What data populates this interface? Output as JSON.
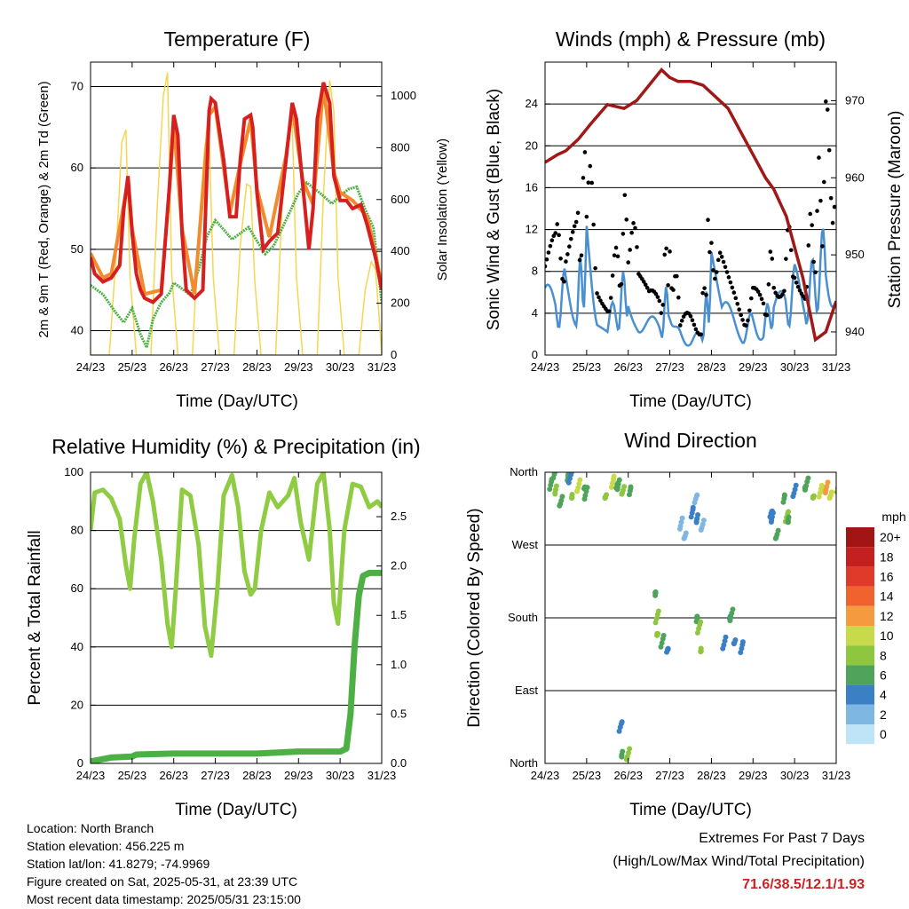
{
  "panels": [
    {
      "title": "Temperature (F)",
      "xlabel": "Time (Day/UTC)",
      "ylabel_left": "2m & 9m T (Red, Orange) & 2m Td (Green)",
      "ylabel_right": "Solar Insolation (Yellow)"
    },
    {
      "title": "Winds (mph) & Pressure (mb)",
      "xlabel": "Time (Day/UTC)",
      "ylabel_left": "Sonic Wind & Gust (Blue, Black)",
      "ylabel_right": "Station Pressure (Maroon)"
    },
    {
      "title": "Relative Humidity (%) & Precipitation (in)",
      "xlabel": "Time (Day/UTC)",
      "ylabel_left": "Percent & Total Rainfall",
      "ylabel_right": ""
    },
    {
      "title": "Wind Direction",
      "xlabel": "Time (Day/UTC)",
      "ylabel_left": "Direction (Colored By Speed)",
      "ylabel_right": ""
    }
  ],
  "colorbar": {
    "unit": "mph",
    "labels": [
      "20+",
      "18",
      "16",
      "14",
      "12",
      "10",
      "8",
      "6",
      "4",
      "2",
      "0"
    ],
    "colors": [
      "#a31515",
      "#c42020",
      "#e03a2a",
      "#f0622e",
      "#f59a3e",
      "#c8d94a",
      "#8fc640",
      "#4fa35b",
      "#3b7fc4",
      "#7fb7e3",
      "#bfe3f7"
    ]
  },
  "info": {
    "location": "Location: North Branch",
    "elevation": "Station elevation: 456.225 m",
    "latlon": "Station lat/lon: 41.8279; -74.9969",
    "created": "Figure created on Sat, 2025-05-31, at 23:39 UTC",
    "recent": "Most recent data timestamp: 2025/05/31 23:15:00"
  },
  "extremes": {
    "line1": "Extremes For Past 7 Days",
    "line2": "(High/Low/Max Wind/Total Precipitation)",
    "values": "71.6/38.5/12.1/1.93"
  },
  "chart_data": [
    {
      "type": "line",
      "title": "Temperature (F)",
      "xlabel": "Time (Day/UTC)",
      "x_ticks": [
        "24/23",
        "25/23",
        "26/23",
        "27/23",
        "28/23",
        "29/23",
        "30/23",
        "31/23"
      ],
      "xlim": [
        0,
        7
      ],
      "ylabel": "2m & 9m T (Red, Orange) & 2m Td (Green)",
      "ylim": [
        37,
        73
      ],
      "y_ticks": [
        40,
        50,
        60,
        70
      ],
      "y2label": "Solar Insolation (Yellow)",
      "y2lim": [
        0,
        1130
      ],
      "y2_ticks": [
        0,
        200,
        400,
        600,
        800,
        1000
      ],
      "series": [
        {
          "name": "2m T",
          "color": "#d62020",
          "x": [
            0,
            0.1,
            0.3,
            0.5,
            0.7,
            0.8,
            0.9,
            1.0,
            1.1,
            1.2,
            1.3,
            1.5,
            1.7,
            1.9,
            2.0,
            2.1,
            2.2,
            2.3,
            2.5,
            2.7,
            2.85,
            2.9,
            3.0,
            3.2,
            3.35,
            3.5,
            3.6,
            3.7,
            3.85,
            3.9,
            4.0,
            4.15,
            4.3,
            4.5,
            4.7,
            4.85,
            4.95,
            5.1,
            5.25,
            5.35,
            5.45,
            5.6,
            5.75,
            5.85,
            6.0,
            6.15,
            6.3,
            6.5,
            6.65,
            6.85,
            7.0
          ],
          "y": [
            49,
            47,
            46,
            46.5,
            48,
            55,
            59,
            52,
            47,
            45,
            44,
            43.5,
            44.5,
            58,
            66.5,
            64,
            52,
            45,
            44,
            45,
            67,
            68.5,
            68,
            61,
            54,
            54,
            61,
            66,
            66.5,
            65,
            57,
            50,
            51,
            52,
            61,
            68,
            66,
            58,
            50,
            55,
            66,
            70.5,
            68,
            59,
            56,
            56,
            55,
            55.5,
            53,
            49,
            45
          ]
        },
        {
          "name": "9m T",
          "color": "#f28a2e",
          "x": [
            0,
            0.3,
            0.5,
            0.8,
            0.9,
            1.0,
            1.3,
            1.7,
            1.9,
            2.0,
            2.2,
            2.5,
            2.85,
            3.0,
            3.35,
            3.6,
            3.85,
            4.0,
            4.3,
            4.7,
            4.85,
            5.1,
            5.35,
            5.6,
            5.85,
            6.0,
            6.3,
            6.65,
            6.85,
            7.0
          ],
          "y": [
            49.5,
            46.5,
            47,
            55.5,
            58.5,
            52.5,
            44.5,
            45,
            57.5,
            65.5,
            52.5,
            44.5,
            66.5,
            67.5,
            54.5,
            60.5,
            66,
            57.5,
            51.5,
            61.5,
            67.5,
            58.5,
            55.5,
            70,
            59.5,
            57,
            56,
            54,
            49.5,
            45.5
          ]
        },
        {
          "name": "2m Td",
          "color": "#4db044",
          "x": [
            0,
            0.3,
            0.6,
            0.8,
            1.0,
            1.2,
            1.35,
            1.5,
            1.7,
            1.9,
            2.0,
            2.2,
            2.4,
            2.6,
            2.8,
            3.0,
            3.2,
            3.4,
            3.6,
            3.8,
            4.0,
            4.2,
            4.4,
            4.6,
            4.8,
            5.0,
            5.2,
            5.4,
            5.6,
            5.8,
            6.0,
            6.2,
            6.4,
            6.6,
            6.8,
            7.0
          ],
          "y": [
            45,
            44,
            42,
            41,
            43,
            40,
            38.5,
            42,
            44,
            45,
            46,
            45,
            44,
            47,
            51,
            53,
            52,
            51,
            52,
            53,
            51.5,
            50,
            51,
            53,
            55,
            57,
            58,
            57,
            56,
            55,
            56,
            57,
            57.5,
            55,
            53,
            44
          ]
        },
        {
          "name": "Solar Insolation",
          "color": "#f5d650",
          "x": [
            0,
            0.45,
            0.6,
            0.75,
            0.85,
            0.95,
            1.1,
            1.45,
            1.6,
            1.75,
            1.85,
            1.95,
            2.1,
            2.45,
            2.6,
            2.75,
            2.85,
            2.95,
            3.1,
            3.45,
            3.6,
            3.75,
            3.85,
            3.95,
            4.1,
            4.45,
            4.6,
            4.75,
            4.85,
            4.95,
            5.1,
            5.45,
            5.6,
            5.75,
            5.85,
            5.95,
            6.1,
            6.45,
            6.6,
            6.75,
            6.85,
            6.95,
            7.0
          ],
          "y": [
            0,
            0,
            350,
            820,
            870,
            300,
            0,
            0,
            560,
            1000,
            1090,
            320,
            0,
            0,
            480,
            810,
            860,
            300,
            0,
            0,
            420,
            660,
            650,
            280,
            0,
            0,
            560,
            870,
            890,
            300,
            0,
            0,
            620,
            1060,
            940,
            300,
            0,
            0,
            250,
            360,
            330,
            120,
            0
          ]
        }
      ]
    },
    {
      "type": "line",
      "title": "Winds (mph) & Pressure (mb)",
      "xlabel": "Time (Day/UTC)",
      "x_ticks": [
        "24/23",
        "25/23",
        "26/23",
        "27/23",
        "28/23",
        "29/23",
        "30/23",
        "31/23"
      ],
      "xlim": [
        0,
        7
      ],
      "ylabel": "Sonic Wind & Gust (Blue, Black)",
      "ylim": [
        0,
        28
      ],
      "y_ticks": [
        0,
        4,
        8,
        12,
        16,
        20,
        24
      ],
      "y2label": "Station Pressure (Maroon)",
      "y2lim": [
        937,
        975
      ],
      "y2_ticks": [
        940,
        950,
        960,
        970
      ],
      "series": [
        {
          "name": "Sonic Wind",
          "color": "#4a90d0",
          "x": [
            0,
            0.25,
            0.5,
            0.75,
            1.0,
            1.25,
            1.5,
            1.75,
            2.0,
            2.25,
            2.5,
            2.75,
            3.0,
            3.25,
            3.5,
            3.75,
            4.0,
            4.25,
            4.5,
            4.75,
            5.0,
            5.25,
            5.5,
            5.75,
            6.0,
            6.25,
            6.5,
            6.75,
            7.0
          ],
          "y": [
            5,
            4,
            6,
            5,
            9,
            5,
            3,
            4,
            7,
            4,
            3,
            2,
            6,
            2,
            1.5,
            1.5,
            7,
            4,
            3,
            2,
            3,
            2.5,
            5,
            4,
            6,
            5,
            7,
            9,
            8
          ]
        },
        {
          "name": "Gust",
          "color": "#000000",
          "x": [
            0,
            0.25,
            0.5,
            0.75,
            1.0,
            1.25,
            1.5,
            1.75,
            2.0,
            2.25,
            2.5,
            2.75,
            3.0,
            3.25,
            3.5,
            3.75,
            4.0,
            4.25,
            4.5,
            4.75,
            5.0,
            5.25,
            5.5,
            5.75,
            6.0,
            6.25,
            6.5,
            6.75,
            7.0
          ],
          "y": [
            10,
            9,
            11,
            10,
            16,
            9,
            6,
            8,
            13,
            7,
            5,
            4,
            11,
            3,
            3,
            3,
            13,
            7,
            5,
            4,
            5,
            4,
            9,
            8,
            11,
            8,
            12,
            18,
            20
          ]
        },
        {
          "name": "Station Pressure",
          "color": "#a01818",
          "x": [
            0,
            0.3,
            0.5,
            0.8,
            1.1,
            1.5,
            1.9,
            2.2,
            2.5,
            2.8,
            3.0,
            3.2,
            3.5,
            3.8,
            4.1,
            4.4,
            4.7,
            5.0,
            5.3,
            5.5,
            5.8,
            6.0,
            6.2,
            6.35,
            6.5,
            6.75,
            7.0
          ],
          "y": [
            962,
            963,
            963.5,
            965,
            967,
            969.5,
            969,
            970,
            972,
            974,
            973,
            972.5,
            972.5,
            972,
            970.5,
            969,
            966,
            963,
            960,
            958.5,
            955,
            951,
            947,
            943,
            939,
            940,
            944
          ]
        }
      ]
    },
    {
      "type": "line",
      "title": "Relative Humidity (%) & Precipitation (in)",
      "xlabel": "Time (Day/UTC)",
      "x_ticks": [
        "24/23",
        "25/23",
        "26/23",
        "27/23",
        "28/23",
        "29/23",
        "30/23",
        "31/23"
      ],
      "xlim": [
        0,
        7
      ],
      "ylabel": "Percent & Total Rainfall",
      "ylim": [
        0,
        100
      ],
      "y_ticks": [
        0,
        20,
        40,
        60,
        80,
        100
      ],
      "y2lim": [
        0,
        2.95
      ],
      "y2_ticks": [
        0.0,
        0.5,
        1.0,
        1.5,
        2.0,
        2.5
      ],
      "series": [
        {
          "name": "Relative Humidity",
          "color": "#8fcc44",
          "x": [
            0,
            0.1,
            0.3,
            0.5,
            0.7,
            0.85,
            0.95,
            1.05,
            1.2,
            1.35,
            1.5,
            1.7,
            1.85,
            1.95,
            2.05,
            2.2,
            2.4,
            2.6,
            2.75,
            2.9,
            3.05,
            3.2,
            3.4,
            3.55,
            3.7,
            3.85,
            3.95,
            4.1,
            4.3,
            4.5,
            4.75,
            4.9,
            5.05,
            5.25,
            5.45,
            5.6,
            5.75,
            5.85,
            5.95,
            6.1,
            6.3,
            6.5,
            6.7,
            6.9,
            7.0
          ],
          "y": [
            80,
            93,
            94,
            91,
            84,
            68,
            60,
            77,
            96,
            100,
            90,
            70,
            48,
            40,
            60,
            94,
            92,
            75,
            47,
            37,
            60,
            92,
            99,
            88,
            66,
            58,
            60,
            80,
            93,
            88,
            92,
            98,
            83,
            70,
            96,
            100,
            80,
            55,
            48,
            80,
            96,
            95,
            88,
            90,
            88
          ]
        },
        {
          "name": "Total Rainfall",
          "color": "#4db044",
          "x": [
            0,
            0.5,
            1.0,
            1.1,
            2.0,
            3.0,
            4.0,
            4.5,
            5.0,
            5.5,
            6.0,
            6.15,
            6.25,
            6.35,
            6.45,
            6.55,
            6.7,
            7.0
          ],
          "y": [
            0.02,
            0.06,
            0.07,
            0.09,
            0.1,
            0.1,
            0.1,
            0.11,
            0.12,
            0.12,
            0.12,
            0.15,
            0.5,
            1.2,
            1.7,
            1.9,
            1.93,
            1.93
          ]
        }
      ]
    },
    {
      "type": "scatter",
      "title": "Wind Direction",
      "xlabel": "Time (Day/UTC)",
      "x_ticks": [
        "24/23",
        "25/23",
        "26/23",
        "27/23",
        "28/23",
        "29/23",
        "30/23",
        "31/23"
      ],
      "xlim": [
        0,
        7
      ],
      "ylabel": "Direction (Colored By Speed)",
      "y_tick_labels": [
        "North",
        "East",
        "South",
        "West",
        "North"
      ],
      "ylim": [
        0,
        360
      ],
      "colorbar_unit": "mph",
      "series": [
        {
          "name": "Direction",
          "x": [
            0.1,
            0.2,
            0.3,
            0.4,
            0.5,
            0.6,
            0.7,
            0.8,
            0.9,
            1.0,
            1.5,
            1.6,
            1.7,
            1.8,
            1.9,
            2.0,
            1.8,
            1.9,
            2.0,
            2.6,
            2.7,
            2.75,
            2.8,
            2.9,
            3.3,
            3.4,
            3.5,
            3.6,
            3.7,
            3.8,
            3.6,
            3.7,
            3.8,
            4.3,
            4.4,
            4.5,
            4.6,
            4.7,
            5.4,
            5.5,
            5.6,
            5.7,
            5.8,
            5.9,
            6.0,
            6.2,
            6.3,
            6.5,
            6.6,
            6.7,
            6.8,
            6.9,
            7.0
          ],
          "y": [
            340,
            350,
            345,
            330,
            345,
            350,
            340,
            345,
            330,
            335,
            340,
            345,
            335,
            350,
            345,
            330,
            40,
            20,
            15,
            200,
            180,
            170,
            150,
            130,
            300,
            290,
            305,
            320,
            310,
            300,
            170,
            165,
            150,
            150,
            170,
            185,
            160,
            140,
            300,
            310,
            290,
            320,
            300,
            310,
            340,
            330,
            345,
            340,
            335,
            330,
            345,
            340,
            335
          ],
          "speed": [
            5,
            6,
            8,
            6,
            5,
            4,
            8,
            9,
            6,
            5,
            7,
            9,
            6,
            5,
            8,
            6,
            4,
            6,
            7,
            5,
            7,
            8,
            6,
            4,
            2,
            2,
            3,
            2,
            3,
            2,
            6,
            7,
            8,
            3,
            4,
            5,
            4,
            3,
            3,
            4,
            5,
            6,
            7,
            5,
            4,
            6,
            5,
            8,
            9,
            10,
            12,
            10,
            8
          ]
        }
      ]
    }
  ]
}
